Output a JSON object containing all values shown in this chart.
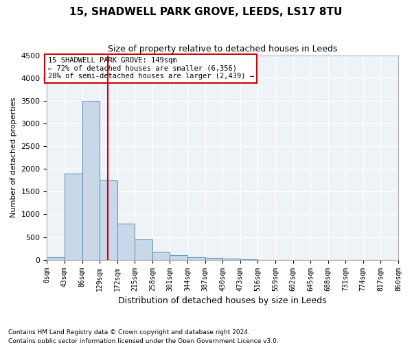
{
  "title1": "15, SHADWELL PARK GROVE, LEEDS, LS17 8TU",
  "title2": "Size of property relative to detached houses in Leeds",
  "xlabel": "Distribution of detached houses by size in Leeds",
  "ylabel": "Number of detached properties",
  "footnote1": "Contains HM Land Registry data © Crown copyright and database right 2024.",
  "footnote2": "Contains public sector information licensed under the Open Government Licence v3.0.",
  "annotation_line1": "15 SHADWELL PARK GROVE: 149sqm",
  "annotation_line2": "← 72% of detached houses are smaller (6,356)",
  "annotation_line3": "28% of semi-detached houses are larger (2,439) →",
  "property_size": 149,
  "bin_edges": [
    0,
    43,
    86,
    129,
    172,
    215,
    258,
    301,
    344,
    387,
    430,
    473,
    516,
    559,
    602,
    645,
    688,
    731,
    774,
    817,
    860
  ],
  "bar_heights": [
    50,
    1900,
    3500,
    1750,
    800,
    450,
    175,
    100,
    60,
    40,
    20,
    5,
    0,
    0,
    0,
    0,
    0,
    0,
    0,
    0
  ],
  "bar_color": "#c8d8e8",
  "bar_edge_color": "#6699bb",
  "vline_color": "#cc0000",
  "background_color": "#ffffff",
  "plot_bg_color": "#eef3f8",
  "grid_color": "#ffffff",
  "annotation_box_color": "#cc0000",
  "ylim": [
    0,
    4500
  ],
  "yticks": [
    0,
    500,
    1000,
    1500,
    2000,
    2500,
    3000,
    3500,
    4000,
    4500
  ]
}
